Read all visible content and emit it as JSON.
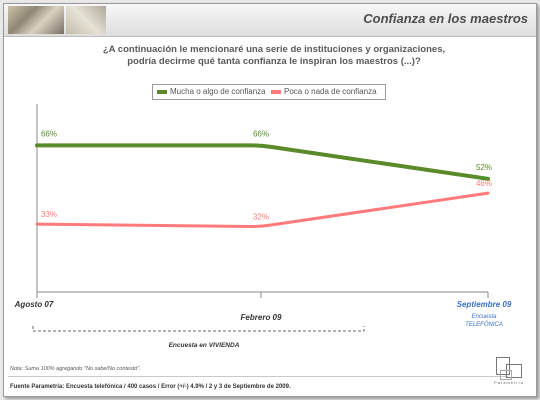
{
  "slide": {
    "title": "Confianza en los maestros",
    "question_line1": "¿A continuación le mencionaré una serie de instituciones y organizaciones,",
    "question_line2": "podría decirme qué tanta confianza le inspiran los maestros (...)?",
    "note": "Nota: Suma 100% agregando  \"No sabe/No contestó\".",
    "source": "Fuente Parametría: Encuesta telefónica / 400 casos / Error (+/-) 4.9% / 2 y 3 de Septiembre  de 2009.",
    "logo_text": "Parametría",
    "survey_vivienda": "Encuesta en VIVIENDA",
    "survey_telefonica_line1": "Encuesta",
    "survey_telefonica_line2": "TELEFÓNICA"
  },
  "chart_data": {
    "type": "line",
    "categories": [
      "Agosto 07",
      "Febrero 09",
      "Septiembre 09"
    ],
    "series": [
      {
        "name": "Mucha o algo de confianza",
        "color": "#5a8a2a",
        "values": [
          66,
          66,
          52
        ],
        "labels": [
          "66%",
          "66%",
          "52%"
        ]
      },
      {
        "name": "Poca o nada de confianza",
        "color": "#ff7a7a",
        "values": [
          33,
          32,
          46
        ],
        "labels": [
          "33%",
          "32%",
          "46%"
        ]
      }
    ],
    "category_colors": [
      "#333333",
      "#333333",
      "#3a6fc4"
    ],
    "ylim": [
      10,
      80
    ],
    "grid": false,
    "legend_position": "top-center",
    "title": "",
    "xlabel": "",
    "ylabel": ""
  }
}
